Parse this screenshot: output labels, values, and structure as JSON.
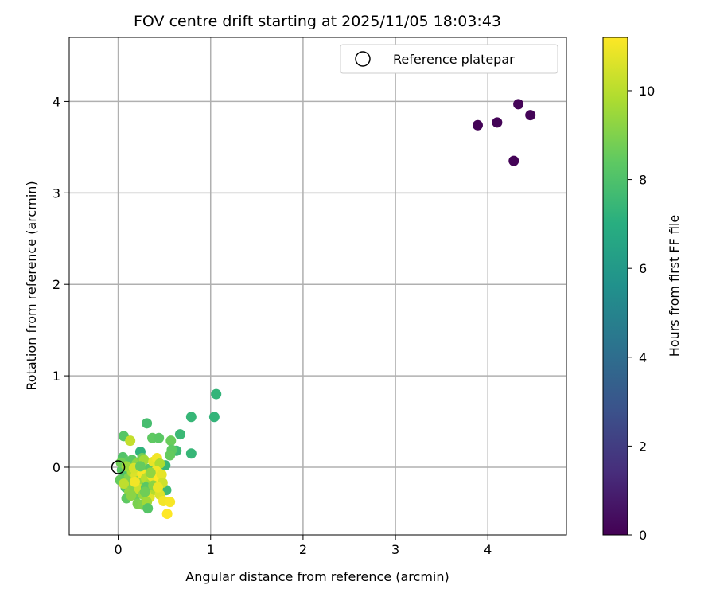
{
  "chart_data": {
    "type": "scatter",
    "title": "FOV centre drift starting at 2025/11/05 18:03:43",
    "xlabel": "Angular distance from reference (arcmin)",
    "ylabel": "Rotation from reference (arcmin)",
    "xlim": [
      -0.53,
      4.85
    ],
    "ylim": [
      -0.74,
      4.7
    ],
    "xticks": [
      0,
      1,
      2,
      3,
      4
    ],
    "yticks": [
      0,
      1,
      2,
      3,
      4
    ],
    "grid": true,
    "legend": {
      "placement": "top-right",
      "entries": [
        "Reference platepar"
      ]
    },
    "reference_point": {
      "x": 0,
      "y": 0,
      "label": "Reference platepar"
    },
    "colorbar": {
      "label": "Hours from first FF file",
      "range": [
        0,
        11.2
      ],
      "ticks": [
        0,
        2,
        4,
        6,
        8,
        10
      ],
      "colormap": "viridis"
    },
    "points": [
      {
        "x": 3.89,
        "y": 3.74,
        "c": 0.1
      },
      {
        "x": 4.1,
        "y": 3.77,
        "c": 0.1
      },
      {
        "x": 4.33,
        "y": 3.97,
        "c": 0.1
      },
      {
        "x": 4.46,
        "y": 3.85,
        "c": 0.1
      },
      {
        "x": 4.28,
        "y": 3.35,
        "c": 0.1
      },
      {
        "x": 1.06,
        "y": 0.8,
        "c": 7.3
      },
      {
        "x": 1.04,
        "y": 0.55,
        "c": 7.3
      },
      {
        "x": 0.79,
        "y": 0.55,
        "c": 7.4
      },
      {
        "x": 0.79,
        "y": 0.15,
        "c": 7.4
      },
      {
        "x": 0.67,
        "y": 0.36,
        "c": 7.5
      },
      {
        "x": 0.63,
        "y": 0.18,
        "c": 7.6
      },
      {
        "x": 0.31,
        "y": 0.48,
        "c": 7.8
      },
      {
        "x": 0.06,
        "y": 0.34,
        "c": 8.2
      },
      {
        "x": 0.13,
        "y": 0.29,
        "c": 10.2
      },
      {
        "x": 0.37,
        "y": 0.32,
        "c": 8.4
      },
      {
        "x": 0.44,
        "y": 0.32,
        "c": 8.3
      },
      {
        "x": 0.57,
        "y": 0.29,
        "c": 8.6
      },
      {
        "x": 0.58,
        "y": 0.19,
        "c": 8.4
      },
      {
        "x": 0.56,
        "y": 0.13,
        "c": 8.5
      },
      {
        "x": 0.24,
        "y": 0.17,
        "c": 7.2
      },
      {
        "x": 0.51,
        "y": 0.02,
        "c": 7.4
      },
      {
        "x": 0.52,
        "y": -0.25,
        "c": 7.6
      },
      {
        "x": 0.05,
        "y": 0.11,
        "c": 8.1
      },
      {
        "x": 0.1,
        "y": 0.06,
        "c": 8.4
      },
      {
        "x": 0.15,
        "y": 0.08,
        "c": 8.3
      },
      {
        "x": 0.2,
        "y": 0.04,
        "c": 9.2
      },
      {
        "x": 0.26,
        "y": 0.1,
        "c": 8.8
      },
      {
        "x": 0.28,
        "y": 0.08,
        "c": 9.6
      },
      {
        "x": 0.33,
        "y": -0.02,
        "c": 8.2
      },
      {
        "x": 0.38,
        "y": 0.06,
        "c": 10.8
      },
      {
        "x": 0.42,
        "y": 0.1,
        "c": 11.0
      },
      {
        "x": 0.45,
        "y": 0.04,
        "c": 9.8
      },
      {
        "x": 0.04,
        "y": -0.03,
        "c": 8.3
      },
      {
        "x": 0.07,
        "y": -0.08,
        "c": 8.1
      },
      {
        "x": 0.11,
        "y": -0.12,
        "c": 9.0
      },
      {
        "x": 0.15,
        "y": -0.05,
        "c": 9.8
      },
      {
        "x": 0.19,
        "y": -0.09,
        "c": 10.6
      },
      {
        "x": 0.22,
        "y": -0.15,
        "c": 9.4
      },
      {
        "x": 0.26,
        "y": -0.07,
        "c": 11.1
      },
      {
        "x": 0.3,
        "y": -0.12,
        "c": 10.0
      },
      {
        "x": 0.33,
        "y": -0.19,
        "c": 9.7
      },
      {
        "x": 0.37,
        "y": -0.1,
        "c": 10.9
      },
      {
        "x": 0.41,
        "y": -0.04,
        "c": 11.0
      },
      {
        "x": 0.44,
        "y": -0.12,
        "c": 11.2
      },
      {
        "x": 0.47,
        "y": -0.08,
        "c": 10.8
      },
      {
        "x": 0.48,
        "y": -0.17,
        "c": 10.4
      },
      {
        "x": 0.02,
        "y": -0.14,
        "c": 8.5
      },
      {
        "x": 0.08,
        "y": -0.22,
        "c": 8.0
      },
      {
        "x": 0.12,
        "y": -0.27,
        "c": 9.3
      },
      {
        "x": 0.16,
        "y": -0.2,
        "c": 9.1
      },
      {
        "x": 0.19,
        "y": -0.31,
        "c": 8.6
      },
      {
        "x": 0.23,
        "y": -0.24,
        "c": 10.3
      },
      {
        "x": 0.27,
        "y": -0.3,
        "c": 9.4
      },
      {
        "x": 0.3,
        "y": -0.22,
        "c": 8.3
      },
      {
        "x": 0.34,
        "y": -0.33,
        "c": 10.7
      },
      {
        "x": 0.4,
        "y": -0.25,
        "c": 9.9
      },
      {
        "x": 0.45,
        "y": -0.3,
        "c": 10.6
      },
      {
        "x": 0.49,
        "y": -0.37,
        "c": 11.0
      },
      {
        "x": 0.09,
        "y": -0.34,
        "c": 8.4
      },
      {
        "x": 0.14,
        "y": -0.31,
        "c": 9.2
      },
      {
        "x": 0.21,
        "y": -0.4,
        "c": 8.9
      },
      {
        "x": 0.26,
        "y": -0.41,
        "c": 9.0
      },
      {
        "x": 0.31,
        "y": -0.38,
        "c": 9.6
      },
      {
        "x": 0.32,
        "y": -0.45,
        "c": 8.2
      },
      {
        "x": 0.56,
        "y": -0.38,
        "c": 11.1
      },
      {
        "x": 0.53,
        "y": -0.51,
        "c": 11.2
      },
      {
        "x": 0.03,
        "y": 0.05,
        "c": 8.7
      },
      {
        "x": 0.09,
        "y": 0.01,
        "c": 9.5
      },
      {
        "x": 0.17,
        "y": -0.01,
        "c": 10.5
      },
      {
        "x": 0.24,
        "y": 0.01,
        "c": 8.5
      },
      {
        "x": 0.35,
        "y": -0.06,
        "c": 9.3
      },
      {
        "x": 0.06,
        "y": -0.18,
        "c": 10.1
      },
      {
        "x": 0.18,
        "y": -0.16,
        "c": 11.0
      },
      {
        "x": 0.29,
        "y": -0.27,
        "c": 8.7
      },
      {
        "x": 0.38,
        "y": -0.2,
        "c": 9.2
      },
      {
        "x": 0.43,
        "y": -0.22,
        "c": 10.9
      }
    ]
  }
}
